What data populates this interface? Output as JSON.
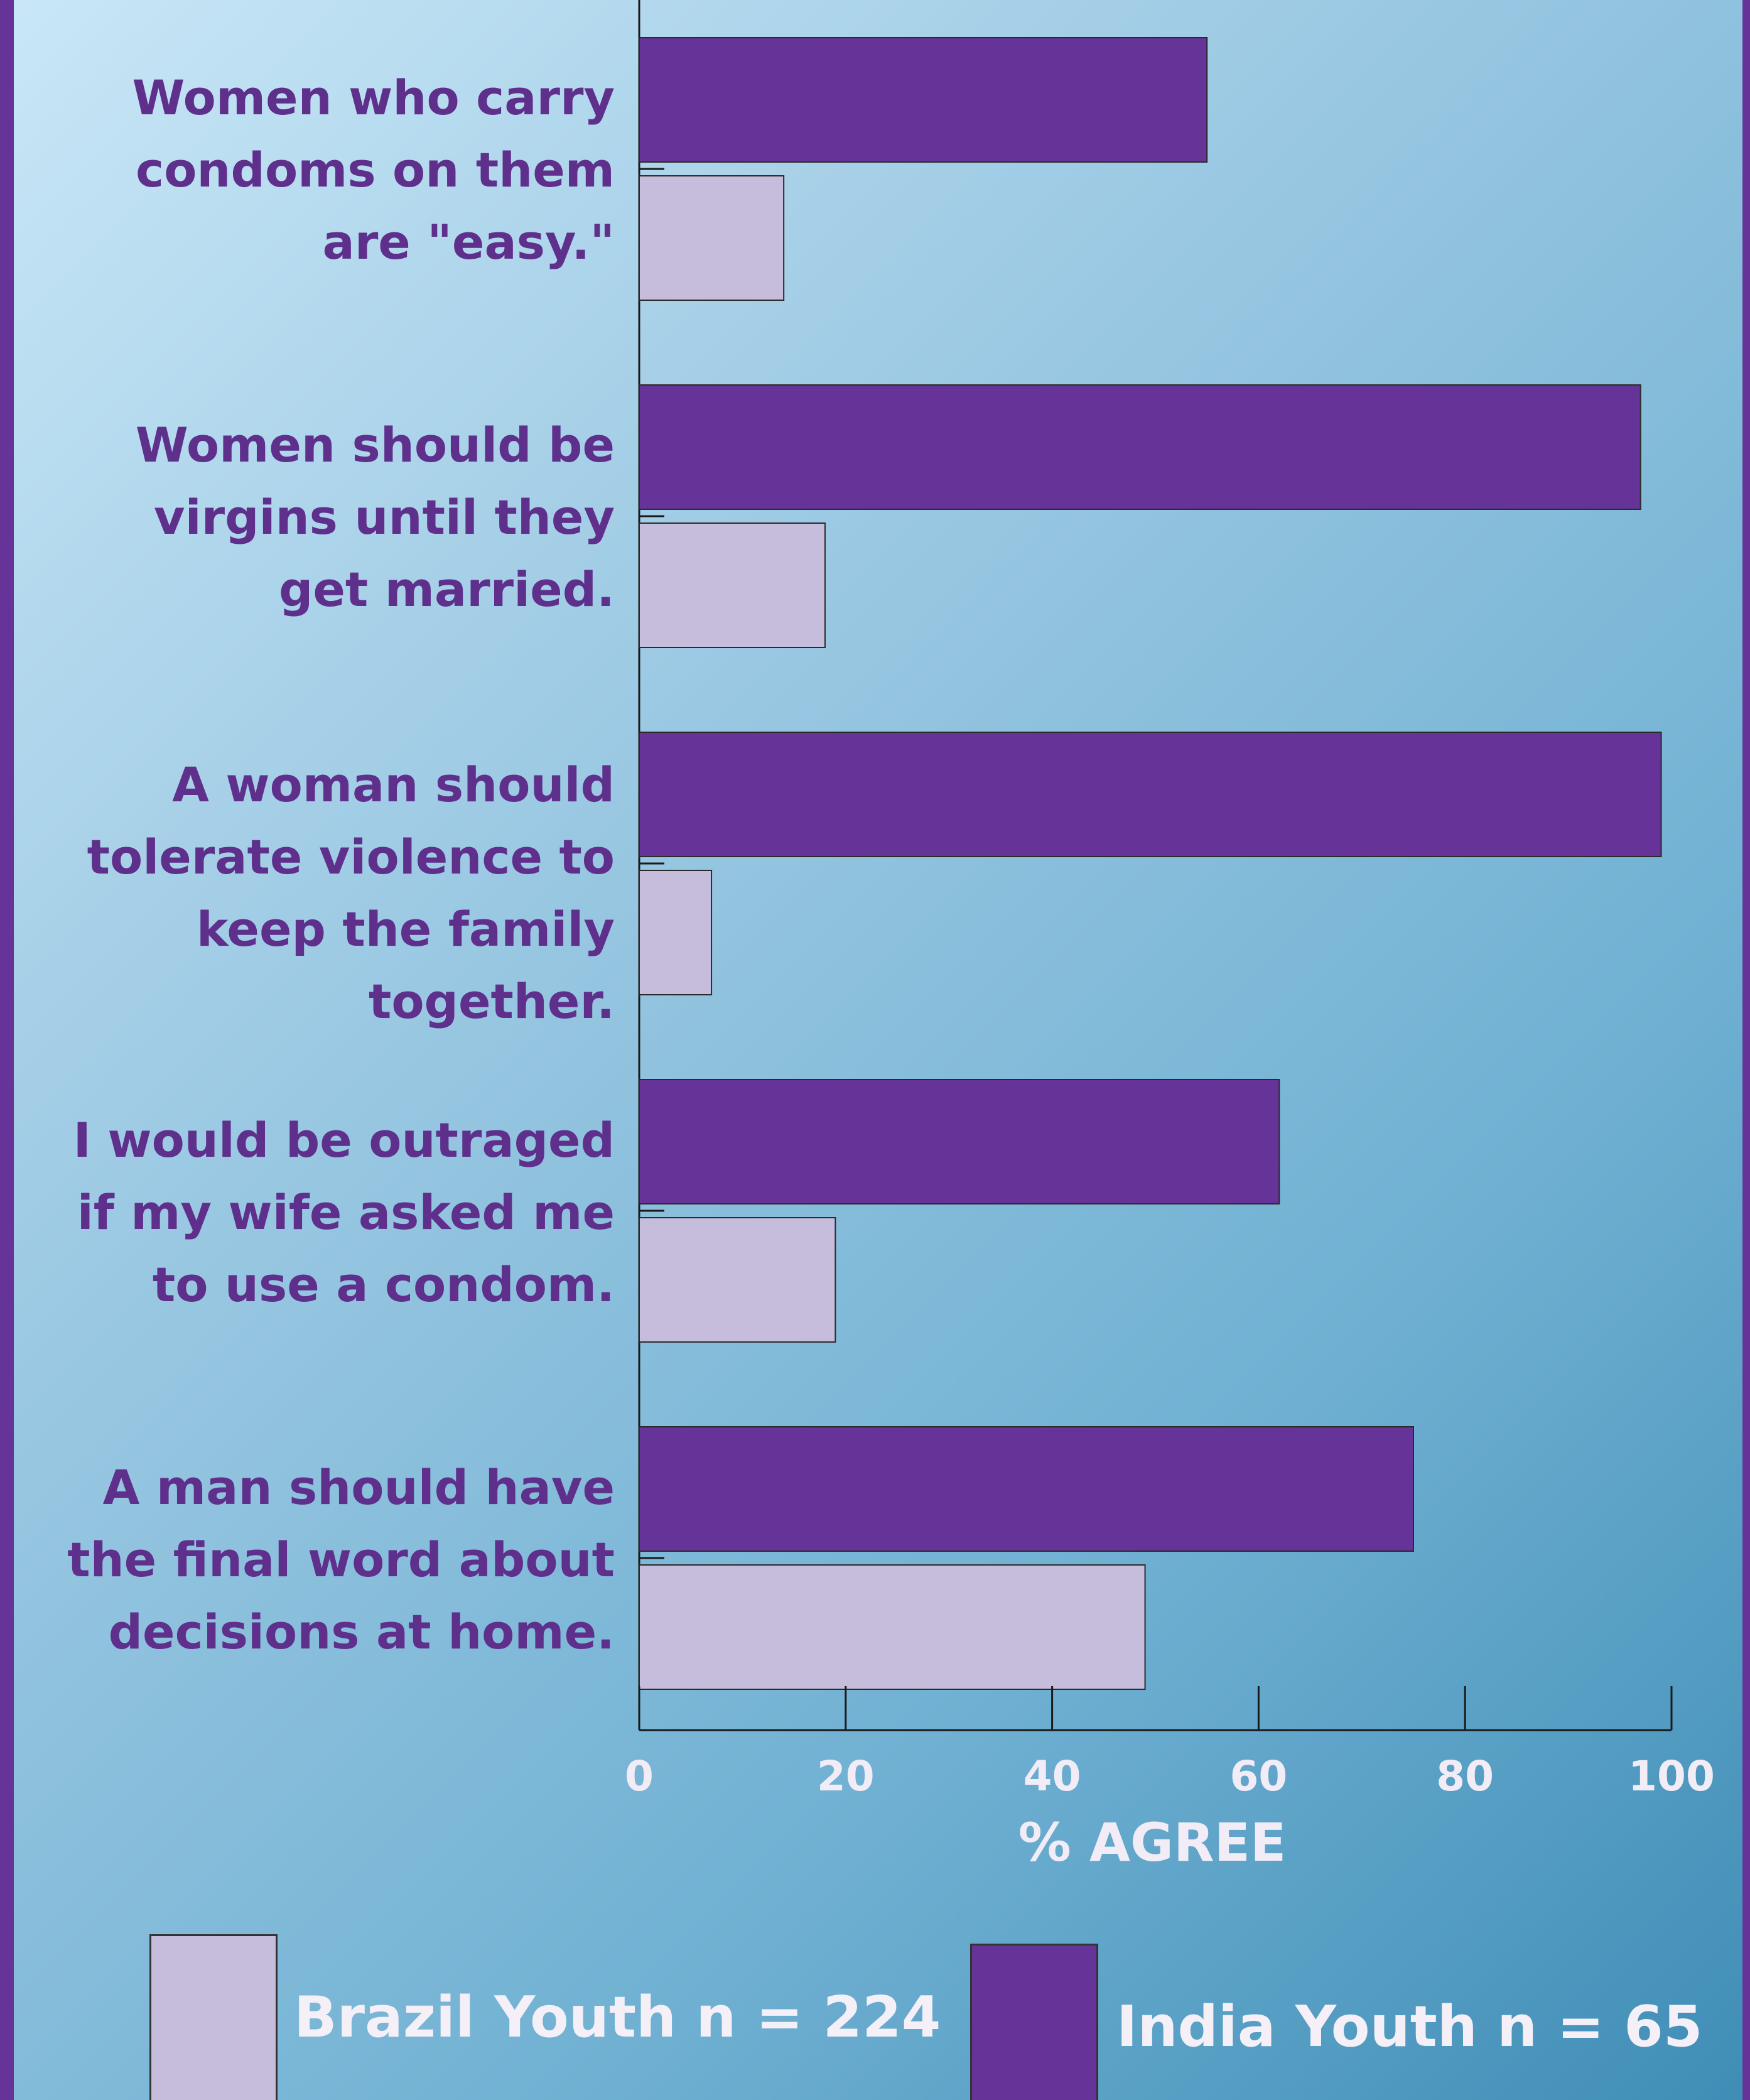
{
  "chart_data": {
    "type": "bar",
    "orientation": "horizontal",
    "categories": [
      "Women who carry condoms on them are \"easy.\"",
      "Women should be virgins until they get married.",
      "A woman should tolerate violence to keep the family together.",
      "I would be outraged if my wife asked me to use a condom.",
      "A man should have the final word about decisions at home."
    ],
    "category_lines": [
      [
        "Women who carry",
        "condoms on them",
        "are \"easy.\""
      ],
      [
        "Women should be",
        "virgins until they",
        "get married."
      ],
      [
        "A woman should",
        "tolerate violence to",
        "keep the family",
        "together."
      ],
      [
        "I would be outraged",
        "if my wife asked me",
        "to use a condom."
      ],
      [
        "A man should have",
        "the final word about",
        "decisions at home."
      ]
    ],
    "series": [
      {
        "name": "India Youth n = 65",
        "values": [
          55,
          97,
          99,
          62,
          75
        ],
        "color": "#663499"
      },
      {
        "name": "Brazil Youth n = 224",
        "values": [
          14,
          18,
          7,
          19,
          49
        ],
        "color": "#c6bddc"
      }
    ],
    "xlabel": "% AGREE",
    "xlim": [
      0,
      100
    ],
    "xticks": [
      "0",
      "20",
      "40",
      "60",
      "80",
      "100"
    ],
    "legend_position": "bottom"
  },
  "colors": {
    "india": "#663499",
    "brazil": "#c6bddc",
    "label_text": "#5f2f8c",
    "axis_text": "#f2ecf7",
    "border": "#663499"
  }
}
